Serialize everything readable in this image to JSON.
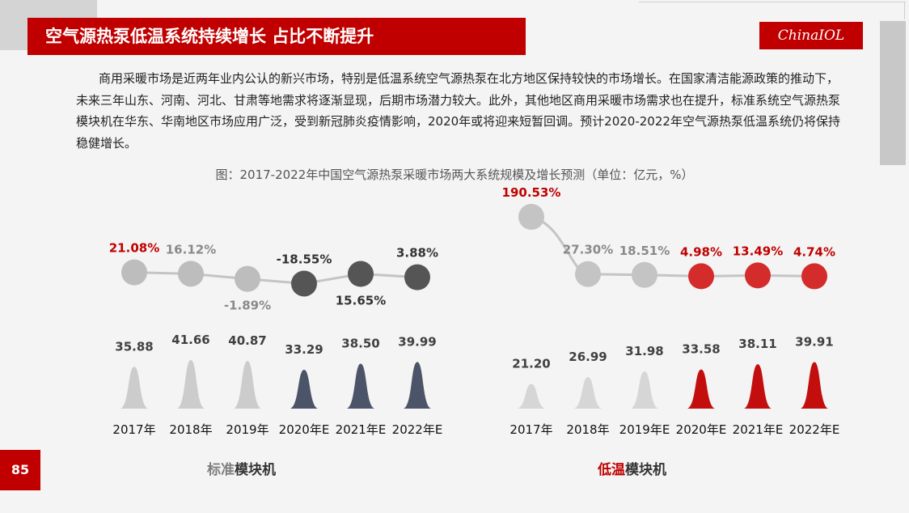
{
  "header": {
    "title": "空气源热泵低温系统持续增长 占比不断提升",
    "logo": "ChinaIOL",
    "page_number": "85"
  },
  "paragraph": "商用采暖市场是近两年业内公认的新兴市场，特别是低温系统空气源热泵在北方地区保持较快的市场增长。在国家清洁能源政策的推动下，未来三年山东、河南、河北、甘肃等地需求将逐渐显现，后期市场潜力较大。此外，其他地区商用采暖市场需求也在提升，标准系统空气源热泵模块机在华东、华南地区市场应用广泛，受到新冠肺炎疫情影响，2020年或将迎来短暂回调。预计2020-2022年空气源热泵低温系统仍将保持稳健增长。",
  "figure_caption": "图：2017-2022年中国空气源热泵采暖市场两大系统规模及增长预测（单位：亿元，%）",
  "colors": {
    "red": "#c00000",
    "light_gray": "#cccccc",
    "dark_gray": "#555555",
    "navy": "#424a5e",
    "bright_red": "#d50f0f"
  },
  "chart_data": [
    {
      "type": "bar",
      "title_highlight": "标准",
      "title_rest": "模块机",
      "categories": [
        "2017年",
        "2018年",
        "2019年",
        "2020年E",
        "2021年E",
        "2022年E"
      ],
      "values": [
        35.88,
        41.66,
        40.87,
        33.29,
        38.5,
        39.99
      ],
      "value_labels": [
        "35.88",
        "41.66",
        "40.87",
        "33.29",
        "38.50",
        "39.99"
      ],
      "growth": [
        21.08,
        16.12,
        -1.89,
        -18.55,
        15.65,
        3.88
      ],
      "growth_labels": [
        "21.08%",
        "16.12%",
        "-1.89%",
        "-18.55%",
        "15.65%",
        "3.88%"
      ],
      "mark_colors": [
        "#cccccc",
        "#cccccc",
        "#cccccc",
        "#424a5e",
        "#424a5e",
        "#424a5e"
      ],
      "dot_colors": [
        "#bdbdbd",
        "#bdbdbd",
        "#bdbdbd",
        "#555555",
        "#555555",
        "#555555"
      ],
      "growth_label_colors": [
        "#c00000",
        "#8a8a8a",
        "#8a8a8a",
        "#333333",
        "#333333",
        "#333333"
      ]
    },
    {
      "type": "bar",
      "title_highlight": "低温",
      "title_rest": "模块机",
      "categories": [
        "2017年",
        "2018年",
        "2019年E",
        "2020年E",
        "2021年E",
        "2022年E"
      ],
      "values": [
        21.2,
        26.99,
        31.98,
        33.58,
        38.11,
        39.91
      ],
      "value_labels": [
        "21.20",
        "26.99",
        "31.98",
        "33.58",
        "38.11",
        "39.91"
      ],
      "growth": [
        190.53,
        27.3,
        18.51,
        4.98,
        13.49,
        4.74
      ],
      "growth_labels": [
        "190.53%",
        "27.30%",
        "18.51%",
        "4.98%",
        "13.49%",
        "4.74%"
      ],
      "mark_colors": [
        "#d6d6d6",
        "#d6d6d6",
        "#d6d6d6",
        "#d50f0f",
        "#d50f0f",
        "#d50f0f"
      ],
      "dot_colors": [
        "#c4c4c4",
        "#c4c4c4",
        "#c4c4c4",
        "#d42b2b",
        "#d42b2b",
        "#d42b2b"
      ],
      "growth_label_colors": [
        "#c00000",
        "#8a8a8a",
        "#8a8a8a",
        "#c00000",
        "#c00000",
        "#c00000"
      ]
    }
  ]
}
